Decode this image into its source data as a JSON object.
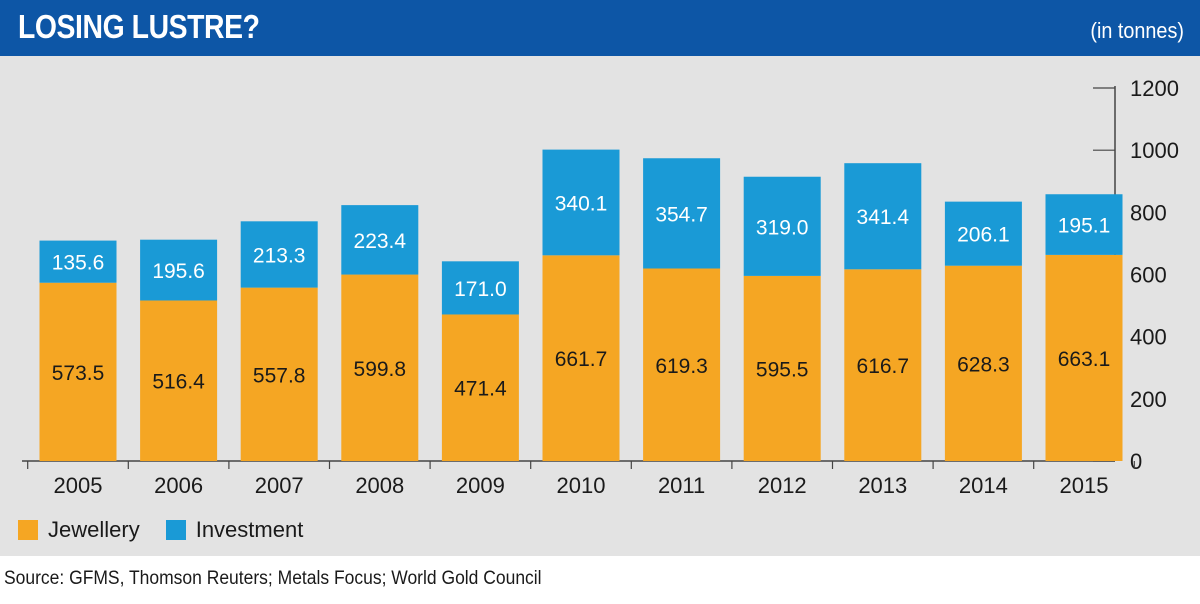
{
  "header": {
    "title": "LOSING LUSTRE?",
    "unit": "(in tonnes)"
  },
  "legend": [
    {
      "label": "Jewellery",
      "color": "#f5a623"
    },
    {
      "label": "Investment",
      "color": "#1a9ad6"
    }
  ],
  "source": "Source: GFMS, Thomson Reuters; Metals Focus; World Gold Council",
  "chart_data": {
    "type": "bar",
    "stacked": true,
    "categories": [
      "2005",
      "2006",
      "2007",
      "2008",
      "2009",
      "2010",
      "2011",
      "2012",
      "2013",
      "2014",
      "2015"
    ],
    "series": [
      {
        "name": "Jewellery",
        "color": "#f5a623",
        "values": [
          573.5,
          516.4,
          557.8,
          599.8,
          471.4,
          661.7,
          619.3,
          595.5,
          616.7,
          628.3,
          663.1
        ],
        "labels": [
          "573.5",
          "516.4",
          "557.8",
          "599.8",
          "471.4",
          "661.7",
          "619.3",
          "595.5",
          "616.7",
          "628.3",
          "663.1"
        ]
      },
      {
        "name": "Investment",
        "color": "#1a9ad6",
        "values": [
          135.6,
          195.6,
          213.3,
          223.4,
          171.0,
          340.1,
          354.7,
          319.0,
          341.4,
          206.1,
          195.1
        ],
        "labels": [
          "135.6",
          "195.6",
          "213.3",
          "223.4",
          "171.0",
          "340.1",
          "354.7",
          "319.0",
          "341.4",
          "206.1",
          "195.1"
        ]
      }
    ],
    "ylim": [
      0,
      1200
    ],
    "yticks": [
      "0",
      "200",
      "400",
      "600",
      "800",
      "1000",
      "1200"
    ],
    "y_axis_position": "right",
    "grid": false,
    "legend_position": "bottom-left"
  }
}
